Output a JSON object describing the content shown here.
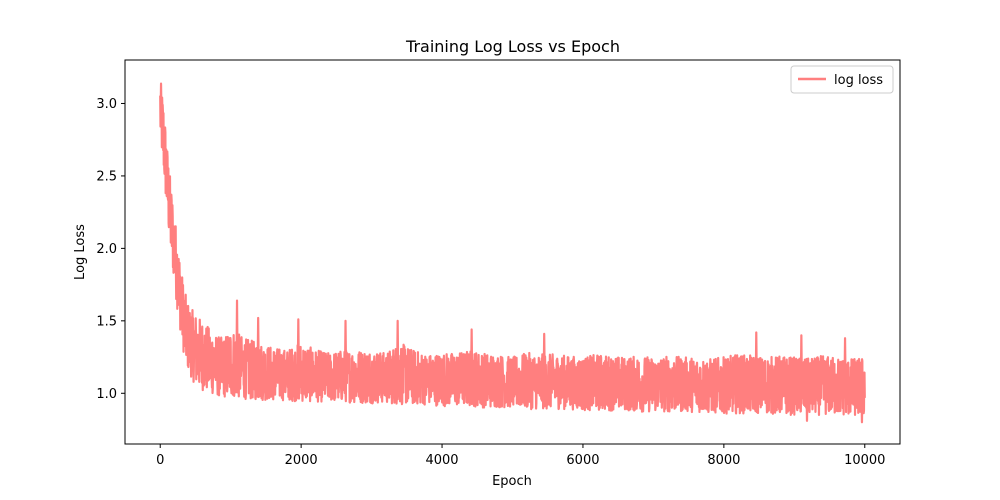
{
  "chart_data": {
    "type": "line",
    "title": "Training Log Loss vs Epoch",
    "xlabel": "Epoch",
    "ylabel": "Log Loss",
    "xlim": [
      -500,
      10500
    ],
    "ylim": [
      0.65,
      3.3
    ],
    "x_ticks": [
      0,
      2000,
      4000,
      6000,
      8000,
      10000
    ],
    "y_ticks": [
      1.0,
      1.5,
      2.0,
      2.5,
      3.0
    ],
    "x_tick_labels": [
      "0",
      "2000",
      "4000",
      "6000",
      "8000",
      "10000"
    ],
    "y_tick_labels": [
      "1.0",
      "1.5",
      "2.0",
      "2.5",
      "3.0"
    ],
    "grid": false,
    "legend_position": "top-right",
    "series": [
      {
        "name": "log loss",
        "color": "#ff7f7f",
        "x": [
          0,
          50,
          100,
          150,
          200,
          250,
          300,
          350,
          400,
          450,
          500,
          600,
          700,
          800,
          900,
          1000,
          1200,
          1400,
          1600,
          1800,
          2000,
          2200,
          2400,
          2600,
          2800,
          3000,
          3200,
          3400,
          3600,
          3800,
          4000,
          4200,
          4400,
          4600,
          4800,
          5000,
          5200,
          5400,
          5600,
          5800,
          6000,
          6200,
          6400,
          6600,
          6800,
          7000,
          7200,
          7400,
          7600,
          7800,
          8000,
          8200,
          8400,
          8600,
          8800,
          9000,
          9200,
          9400,
          9600,
          9800,
          10000
        ],
        "upper": [
          3.18,
          3.0,
          2.7,
          2.45,
          2.25,
          2.05,
          1.85,
          1.7,
          1.62,
          1.58,
          1.55,
          1.5,
          1.45,
          1.4,
          1.38,
          1.45,
          1.38,
          1.35,
          1.32,
          1.3,
          1.35,
          1.3,
          1.28,
          1.3,
          1.3,
          1.3,
          1.28,
          1.35,
          1.3,
          1.27,
          1.28,
          1.28,
          1.3,
          1.28,
          1.27,
          1.25,
          1.28,
          1.27,
          1.27,
          1.26,
          1.25,
          1.27,
          1.26,
          1.25,
          1.26,
          1.25,
          1.26,
          1.25,
          1.25,
          1.24,
          1.25,
          1.27,
          1.26,
          1.25,
          1.26,
          1.25,
          1.24,
          1.26,
          1.25,
          1.24,
          1.25
        ],
        "lower": [
          2.75,
          2.5,
          2.2,
          1.95,
          1.75,
          1.55,
          1.38,
          1.22,
          1.15,
          1.1,
          1.05,
          1.02,
          1.0,
          0.98,
          0.97,
          0.97,
          0.96,
          0.95,
          0.95,
          0.95,
          0.94,
          0.94,
          0.94,
          0.94,
          0.93,
          0.93,
          0.93,
          0.92,
          0.92,
          0.92,
          0.91,
          0.91,
          0.91,
          0.9,
          0.9,
          0.9,
          0.89,
          0.89,
          0.89,
          0.89,
          0.88,
          0.88,
          0.88,
          0.88,
          0.87,
          0.87,
          0.87,
          0.87,
          0.87,
          0.86,
          0.86,
          0.86,
          0.86,
          0.86,
          0.85,
          0.85,
          0.85,
          0.85,
          0.85,
          0.84,
          0.84
        ],
        "spikes": [
          [
            1090,
            1.64
          ],
          [
            1390,
            1.52
          ],
          [
            1960,
            1.51
          ],
          [
            2630,
            1.5
          ],
          [
            3370,
            1.5
          ],
          [
            4420,
            1.44
          ],
          [
            5450,
            1.41
          ],
          [
            8460,
            1.42
          ],
          [
            9100,
            1.4
          ],
          [
            9720,
            1.38
          ],
          [
            9180,
            0.81
          ],
          [
            9960,
            0.8
          ]
        ]
      }
    ]
  }
}
